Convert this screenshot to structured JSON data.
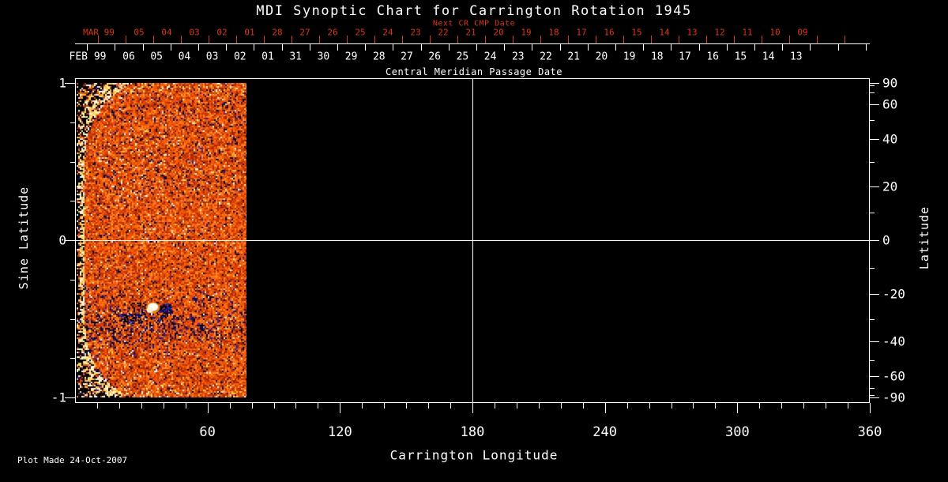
{
  "chart_data": {
    "type": "heatmap",
    "title": "MDI Synoptic Chart for Carrington Rotation 1945",
    "next_cr_axis_label": "Next CR CMP Date",
    "cmp_axis_label": "Central Meridian Passage Date",
    "xlabel": "Carrington Longitude",
    "ylabel_left": "Sine Latitude",
    "ylabel_right": "Latitude",
    "plot_made": "Plot Made 24-Oct-2007",
    "xlim": [
      0,
      360
    ],
    "x_major_ticks": [
      60,
      120,
      180,
      240,
      300,
      360
    ],
    "x_minor_step_deg": 10,
    "ylim_sine": [
      -1.03,
      1.03
    ],
    "y_left_major_ticks": [
      1,
      0,
      -1
    ],
    "y_left_major_labels": [
      "1",
      "0",
      "-1"
    ],
    "y_left_minor_ticks": [
      0.75,
      0.5,
      0.25,
      -0.25,
      -0.5,
      -0.75
    ],
    "y_right_major_ticks_deg": [
      90,
      60,
      40,
      20,
      0,
      -20,
      -40,
      -60,
      -90
    ],
    "y_right_major_labels": [
      "90",
      "60",
      "40",
      "20",
      "0",
      "-20",
      "-40",
      "-60",
      "-90"
    ],
    "y_right_minor_ticks_deg": [
      80,
      70,
      50,
      30,
      10,
      -10,
      -30,
      -50,
      -70,
      -80
    ],
    "crosshair": {
      "longitude_deg": 180,
      "sine_latitude": 0
    },
    "top_axis_red": {
      "month_label": "MAR 99",
      "days": [
        "05",
        "04",
        "03",
        "02",
        "01",
        "28",
        "27",
        "26",
        "25",
        "24",
        "23",
        "22",
        "21",
        "20",
        "19",
        "18",
        "17",
        "16",
        "15",
        "14",
        "13",
        "12",
        "11",
        "10",
        "09"
      ]
    },
    "top_axis_white": {
      "month_label": "FEB 99",
      "days": [
        "06",
        "05",
        "04",
        "03",
        "02",
        "01",
        "31",
        "30",
        "29",
        "28",
        "27",
        "26",
        "25",
        "24",
        "23",
        "22",
        "21",
        "20",
        "19",
        "18",
        "17",
        "16",
        "15",
        "14",
        "13"
      ]
    },
    "data_region": {
      "longitude_min_deg": 0,
      "longitude_max_deg": 77.7,
      "description": "Noisy photospheric magnetogram: orange-red salt-and-pepper field, dark blue/black flecks in activity bands, white speckle fringe along the 0-degree edge and both poles, streaky bright rows at the south edge, bright active region with dark plage nearby",
      "active_region": {
        "longitude_deg": 36,
        "sine_latitude": -0.44
      }
    },
    "colors": {
      "background": "#000000",
      "axis": "#ffffff",
      "text": "#ffffff",
      "red_axis_text": "#d93812",
      "base_palette": [
        "#e8490a",
        "#ff6a00",
        "#d13a00",
        "#b22d02",
        "#ff7d1e",
        "#f05207",
        "#c23408",
        "#ff9431",
        "#9c2602",
        "#ff5c00",
        "#e55a12"
      ],
      "dark_palette": [
        "#000000",
        "#05053a",
        "#14147a",
        "#2222a8",
        "#000000",
        "#0a0a55"
      ],
      "bright_palette": [
        "#ffffff",
        "#ffeab2",
        "#ffd24d",
        "#fff3d0",
        "#ffc835"
      ]
    }
  }
}
